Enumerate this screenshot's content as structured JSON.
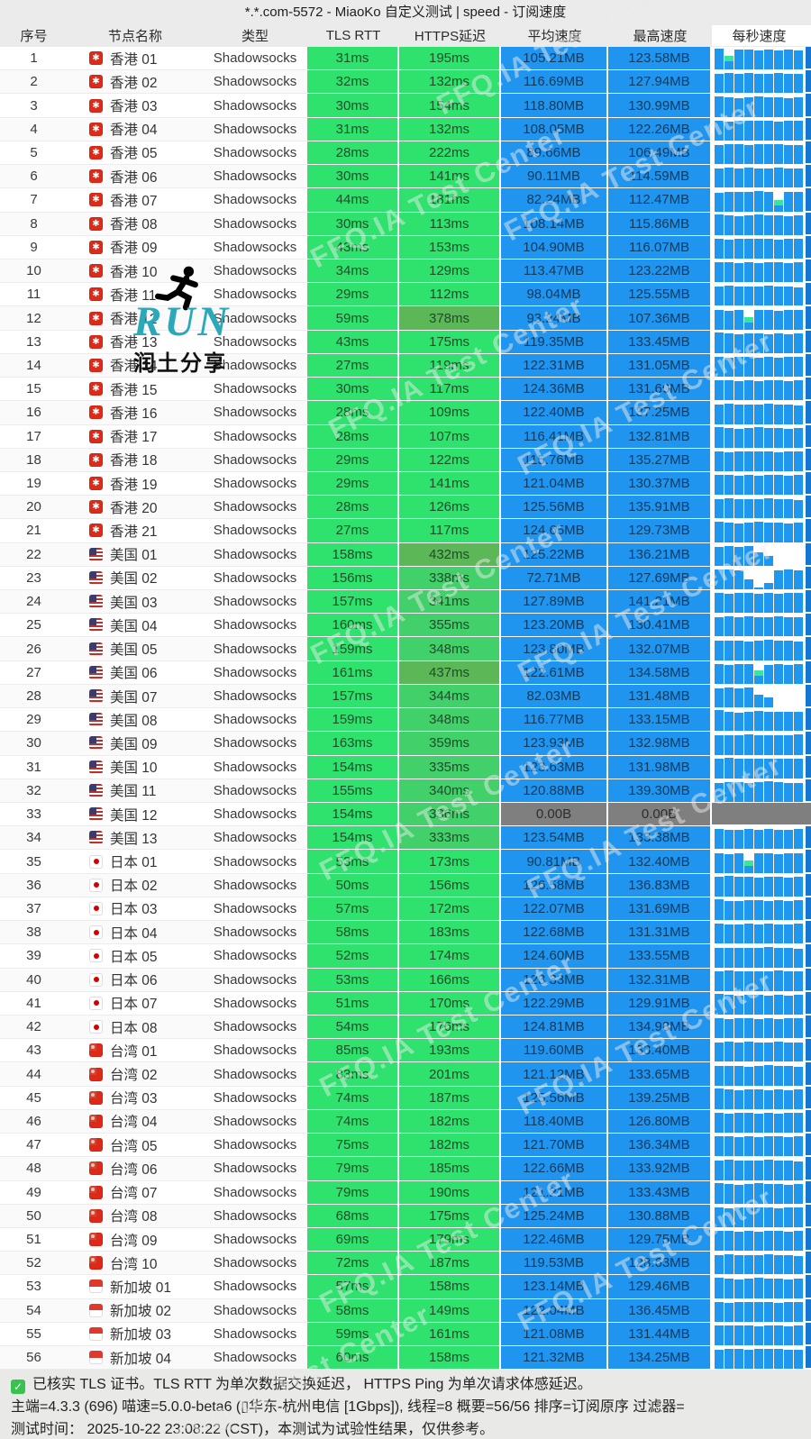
{
  "title": "*.*.com-5572 - MiaoKo 自定义测试 | speed - 订阅速度",
  "columns": [
    "序号",
    "节点名称",
    "类型",
    "TLS RTT",
    "HTTPS延迟",
    "平均速度",
    "最高速度",
    "每秒速度"
  ],
  "colors": {
    "latency_green_bright": "#2ee26d",
    "latency_green_mid": "#41d069",
    "latency_green_dark": "#5cb757",
    "speed_blue": "#2095ef",
    "fail_gray": "#7f7f7f",
    "spark_bar_blue": "#1f97ef",
    "spark_accent_teal": "#35e69b",
    "header_gray": "#ebebeb"
  },
  "watermark": {
    "diagonal_text": "FFQ.IA Test Center",
    "run_text": "RUN",
    "run_caption": "润土分享"
  },
  "footer": {
    "line1": "已核实 TLS 证书。TLS RTT 为单次数据交换延迟， HTTPS Ping 为单次请求体感延迟。",
    "line2": "主端=4.3.3 (696) 喵速=5.0.0-beta6 (▯华东-杭州电信 [1Gbps]), 线程=8 概要=56/56 排序=订阅原序 过滤器=",
    "line3": "测试时间： 2025-10-22 23:08:22 (CST)，本测试为试验性结果，仅供参考。"
  },
  "spark_patterns": [
    [
      0.97,
      {
        "h": 0.62,
        "g": true
      },
      0.93,
      0.9,
      0.88,
      0.9,
      0.87,
      0.9,
      0.88
    ],
    [
      0.9,
      0.93,
      0.89,
      0.91,
      0.88,
      0.9,
      0.92,
      0.88,
      0.9
    ],
    [
      0.95,
      0.89,
      0.86,
      0.9,
      0.92,
      0.88,
      0.9,
      0.87,
      0.9
    ],
    [
      0.9,
      0.88,
      0.92,
      0.9,
      {
        "h": 0.6,
        "g": true
      },
      0.86,
      0.9,
      0.88,
      0.91
    ],
    [
      0.86,
      0.9,
      0.88,
      0.91,
      0.93,
      0.9,
      {
        "h": 0.5,
        "g": true
      },
      0.88,
      0.9
    ],
    [
      0.92,
      0.9,
      0.88,
      0.45,
      0.1,
      0.3,
      0.86,
      0.9,
      0.88
    ],
    [
      0.88,
      0.9,
      0.87,
      0.9,
      0.6,
      0.45,
      0,
      0,
      0
    ],
    [
      0.91,
      0.88,
      0.9,
      0.92,
      0.89,
      0.91,
      0.88,
      0.9,
      0.92
    ],
    [
      0.88,
      0.91,
      0.9,
      0.87,
      0.9,
      0.93,
      0.9,
      0.88,
      0.86
    ],
    [
      0.9,
      0.87,
      0.9,
      {
        "h": 0.55,
        "g": true
      },
      0.88,
      0.9,
      0.87,
      0.91,
      0.9
    ]
  ],
  "rows": [
    {
      "n": 1,
      "f": "hk",
      "name": "香港 01",
      "type": "Shadowsocks",
      "tls": "31ms",
      "hp": "195ms",
      "avg": "105.21MB",
      "max": "123.58MB",
      "sp": 0
    },
    {
      "n": 2,
      "f": "hk",
      "name": "香港 02",
      "type": "Shadowsocks",
      "tls": "32ms",
      "hp": "132ms",
      "avg": "116.69MB",
      "max": "127.94MB",
      "sp": 1
    },
    {
      "n": 3,
      "f": "hk",
      "name": "香港 03",
      "type": "Shadowsocks",
      "tls": "30ms",
      "hp": "154ms",
      "avg": "118.80MB",
      "max": "130.99MB",
      "sp": 2
    },
    {
      "n": 4,
      "f": "hk",
      "name": "香港 04",
      "type": "Shadowsocks",
      "tls": "31ms",
      "hp": "132ms",
      "avg": "108.05MB",
      "max": "122.26MB",
      "sp": 7
    },
    {
      "n": 5,
      "f": "hk",
      "name": "香港 05",
      "type": "Shadowsocks",
      "tls": "28ms",
      "hp": "222ms",
      "avg": "89.66MB",
      "max": "106.49MB",
      "sp": 8
    },
    {
      "n": 6,
      "f": "hk",
      "name": "香港 06",
      "type": "Shadowsocks",
      "tls": "30ms",
      "hp": "141ms",
      "avg": "90.11MB",
      "max": "114.59MB",
      "sp": 1
    },
    {
      "n": 7,
      "f": "hk",
      "name": "香港 07",
      "type": "Shadowsocks",
      "tls": "44ms",
      "hp": "181ms",
      "avg": "82.24MB",
      "max": "112.47MB",
      "sp": 4
    },
    {
      "n": 8,
      "f": "hk",
      "name": "香港 08",
      "type": "Shadowsocks",
      "tls": "30ms",
      "hp": "113ms",
      "avg": "108.14MB",
      "max": "115.86MB",
      "sp": 2
    },
    {
      "n": 9,
      "f": "hk",
      "name": "香港 09",
      "type": "Shadowsocks",
      "tls": "43ms",
      "hp": "153ms",
      "avg": "104.90MB",
      "max": "116.07MB",
      "sp": 7
    },
    {
      "n": 10,
      "f": "hk",
      "name": "香港 10",
      "type": "Shadowsocks",
      "tls": "34ms",
      "hp": "129ms",
      "avg": "113.47MB",
      "max": "123.22MB",
      "sp": 1
    },
    {
      "n": 11,
      "f": "hk",
      "name": "香港 11",
      "type": "Shadowsocks",
      "tls": "29ms",
      "hp": "112ms",
      "avg": "98.04MB",
      "max": "125.55MB",
      "sp": 8
    },
    {
      "n": 12,
      "f": "hk",
      "name": "香港 12",
      "type": "Shadowsocks",
      "tls": "59ms",
      "hp": "378ms",
      "avg": "93.24MB",
      "max": "107.36MB",
      "sp": 9
    },
    {
      "n": 13,
      "f": "hk",
      "name": "香港 13",
      "type": "Shadowsocks",
      "tls": "43ms",
      "hp": "175ms",
      "avg": "119.35MB",
      "max": "133.45MB",
      "sp": 2
    },
    {
      "n": 14,
      "f": "hk",
      "name": "香港 14",
      "type": "Shadowsocks",
      "tls": "27ms",
      "hp": "119ms",
      "avg": "122.31MB",
      "max": "131.05MB",
      "sp": 7
    },
    {
      "n": 15,
      "f": "hk",
      "name": "香港 15",
      "type": "Shadowsocks",
      "tls": "30ms",
      "hp": "117ms",
      "avg": "124.36MB",
      "max": "131.60MB",
      "sp": 1
    },
    {
      "n": 16,
      "f": "hk",
      "name": "香港 16",
      "type": "Shadowsocks",
      "tls": "28ms",
      "hp": "109ms",
      "avg": "122.40MB",
      "max": "137.25MB",
      "sp": 8
    },
    {
      "n": 17,
      "f": "hk",
      "name": "香港 17",
      "type": "Shadowsocks",
      "tls": "28ms",
      "hp": "107ms",
      "avg": "116.41MB",
      "max": "132.81MB",
      "sp": 2
    },
    {
      "n": 18,
      "f": "hk",
      "name": "香港 18",
      "type": "Shadowsocks",
      "tls": "29ms",
      "hp": "122ms",
      "avg": "115.76MB",
      "max": "135.27MB",
      "sp": 7
    },
    {
      "n": 19,
      "f": "hk",
      "name": "香港 19",
      "type": "Shadowsocks",
      "tls": "29ms",
      "hp": "141ms",
      "avg": "121.04MB",
      "max": "130.37MB",
      "sp": 1
    },
    {
      "n": 20,
      "f": "hk",
      "name": "香港 20",
      "type": "Shadowsocks",
      "tls": "28ms",
      "hp": "126ms",
      "avg": "125.56MB",
      "max": "135.91MB",
      "sp": 8
    },
    {
      "n": 21,
      "f": "hk",
      "name": "香港 21",
      "type": "Shadowsocks",
      "tls": "27ms",
      "hp": "117ms",
      "avg": "124.65MB",
      "max": "129.73MB",
      "sp": 2
    },
    {
      "n": 22,
      "f": "us",
      "name": "美国 01",
      "type": "Shadowsocks",
      "tls": "158ms",
      "hp": "432ms",
      "avg": "125.22MB",
      "max": "136.21MB",
      "sp": 6
    },
    {
      "n": 23,
      "f": "us",
      "name": "美国 02",
      "type": "Shadowsocks",
      "tls": "156ms",
      "hp": "338ms",
      "avg": "72.71MB",
      "max": "127.69MB",
      "sp": 5
    },
    {
      "n": 24,
      "f": "us",
      "name": "美国 03",
      "type": "Shadowsocks",
      "tls": "157ms",
      "hp": "341ms",
      "avg": "127.89MB",
      "max": "141.21MB",
      "sp": 7
    },
    {
      "n": 25,
      "f": "us",
      "name": "美国 04",
      "type": "Shadowsocks",
      "tls": "160ms",
      "hp": "355ms",
      "avg": "123.20MB",
      "max": "130.41MB",
      "sp": 1
    },
    {
      "n": 26,
      "f": "us",
      "name": "美国 05",
      "type": "Shadowsocks",
      "tls": "159ms",
      "hp": "348ms",
      "avg": "123.80MB",
      "max": "132.07MB",
      "sp": 8
    },
    {
      "n": 27,
      "f": "us",
      "name": "美国 06",
      "type": "Shadowsocks",
      "tls": "161ms",
      "hp": "437ms",
      "avg": "122.61MB",
      "max": "134.58MB",
      "sp": 3
    },
    {
      "n": 28,
      "f": "us",
      "name": "美国 07",
      "type": "Shadowsocks",
      "tls": "157ms",
      "hp": "344ms",
      "avg": "82.03MB",
      "max": "131.48MB",
      "sp": 6
    },
    {
      "n": 29,
      "f": "us",
      "name": "美国 08",
      "type": "Shadowsocks",
      "tls": "159ms",
      "hp": "348ms",
      "avg": "116.77MB",
      "max": "133.15MB",
      "sp": 2
    },
    {
      "n": 30,
      "f": "us",
      "name": "美国 09",
      "type": "Shadowsocks",
      "tls": "163ms",
      "hp": "359ms",
      "avg": "123.93MB",
      "max": "132.98MB",
      "sp": 7
    },
    {
      "n": 31,
      "f": "us",
      "name": "美国 10",
      "type": "Shadowsocks",
      "tls": "154ms",
      "hp": "335ms",
      "avg": "123.63MB",
      "max": "131.98MB",
      "sp": 1
    },
    {
      "n": 32,
      "f": "us",
      "name": "美国 11",
      "type": "Shadowsocks",
      "tls": "155ms",
      "hp": "340ms",
      "avg": "120.88MB",
      "max": "139.30MB",
      "sp": 8
    },
    {
      "n": 33,
      "f": "us",
      "name": "美国 12",
      "type": "Shadowsocks",
      "tls": "154ms",
      "hp": "336ms",
      "avg": "0.00B",
      "max": "0.00B",
      "sp": 1
    },
    {
      "n": 34,
      "f": "us",
      "name": "美国 13",
      "type": "Shadowsocks",
      "tls": "154ms",
      "hp": "333ms",
      "avg": "123.54MB",
      "max": "133.38MB",
      "sp": 7
    },
    {
      "n": 35,
      "f": "jp",
      "name": "日本 01",
      "type": "Shadowsocks",
      "tls": "53ms",
      "hp": "173ms",
      "avg": "90.81MB",
      "max": "132.40MB",
      "sp": 9
    },
    {
      "n": 36,
      "f": "jp",
      "name": "日本 02",
      "type": "Shadowsocks",
      "tls": "50ms",
      "hp": "156ms",
      "avg": "126.58MB",
      "max": "136.83MB",
      "sp": 1
    },
    {
      "n": 37,
      "f": "jp",
      "name": "日本 03",
      "type": "Shadowsocks",
      "tls": "57ms",
      "hp": "172ms",
      "avg": "122.07MB",
      "max": "131.69MB",
      "sp": 2
    },
    {
      "n": 38,
      "f": "jp",
      "name": "日本 04",
      "type": "Shadowsocks",
      "tls": "58ms",
      "hp": "183ms",
      "avg": "122.68MB",
      "max": "131.31MB",
      "sp": 7
    },
    {
      "n": 39,
      "f": "jp",
      "name": "日本 05",
      "type": "Shadowsocks",
      "tls": "52ms",
      "hp": "174ms",
      "avg": "124.60MB",
      "max": "133.55MB",
      "sp": 8
    },
    {
      "n": 40,
      "f": "jp",
      "name": "日本 06",
      "type": "Shadowsocks",
      "tls": "53ms",
      "hp": "166ms",
      "avg": "123.33MB",
      "max": "132.31MB",
      "sp": 1
    },
    {
      "n": 41,
      "f": "jp",
      "name": "日本 07",
      "type": "Shadowsocks",
      "tls": "51ms",
      "hp": "170ms",
      "avg": "122.29MB",
      "max": "129.91MB",
      "sp": 2
    },
    {
      "n": 42,
      "f": "jp",
      "name": "日本 08",
      "type": "Shadowsocks",
      "tls": "54ms",
      "hp": "176ms",
      "avg": "124.81MB",
      "max": "134.98MB",
      "sp": 7
    },
    {
      "n": 43,
      "f": "tw",
      "name": "台湾 01",
      "type": "Shadowsocks",
      "tls": "85ms",
      "hp": "193ms",
      "avg": "119.60MB",
      "max": "133.40MB",
      "sp": 1
    },
    {
      "n": 44,
      "f": "tw",
      "name": "台湾 02",
      "type": "Shadowsocks",
      "tls": "83ms",
      "hp": "201ms",
      "avg": "121.12MB",
      "max": "133.65MB",
      "sp": 8
    },
    {
      "n": 45,
      "f": "tw",
      "name": "台湾 03",
      "type": "Shadowsocks",
      "tls": "74ms",
      "hp": "187ms",
      "avg": "125.56MB",
      "max": "139.25MB",
      "sp": 2
    },
    {
      "n": 46,
      "f": "tw",
      "name": "台湾 04",
      "type": "Shadowsocks",
      "tls": "74ms",
      "hp": "182ms",
      "avg": "118.40MB",
      "max": "126.80MB",
      "sp": 7
    },
    {
      "n": 47,
      "f": "tw",
      "name": "台湾 05",
      "type": "Shadowsocks",
      "tls": "75ms",
      "hp": "182ms",
      "avg": "121.70MB",
      "max": "136.34MB",
      "sp": 1
    },
    {
      "n": 48,
      "f": "tw",
      "name": "台湾 06",
      "type": "Shadowsocks",
      "tls": "79ms",
      "hp": "185ms",
      "avg": "122.66MB",
      "max": "133.92MB",
      "sp": 8
    },
    {
      "n": 49,
      "f": "tw",
      "name": "台湾 07",
      "type": "Shadowsocks",
      "tls": "79ms",
      "hp": "190ms",
      "avg": "121.21MB",
      "max": "133.43MB",
      "sp": 2
    },
    {
      "n": 50,
      "f": "tw",
      "name": "台湾 08",
      "type": "Shadowsocks",
      "tls": "68ms",
      "hp": "175ms",
      "avg": "125.24MB",
      "max": "130.88MB",
      "sp": 7
    },
    {
      "n": 51,
      "f": "tw",
      "name": "台湾 09",
      "type": "Shadowsocks",
      "tls": "69ms",
      "hp": "179ms",
      "avg": "122.46MB",
      "max": "129.75MB",
      "sp": 1
    },
    {
      "n": 52,
      "f": "tw",
      "name": "台湾 10",
      "type": "Shadowsocks",
      "tls": "72ms",
      "hp": "187ms",
      "avg": "119.53MB",
      "max": "128.63MB",
      "sp": 8
    },
    {
      "n": 53,
      "f": "sg",
      "name": "新加坡 01",
      "type": "Shadowsocks",
      "tls": "57ms",
      "hp": "158ms",
      "avg": "123.14MB",
      "max": "129.46MB",
      "sp": 2
    },
    {
      "n": 54,
      "f": "sg",
      "name": "新加坡 02",
      "type": "Shadowsocks",
      "tls": "58ms",
      "hp": "149ms",
      "avg": "122.04MB",
      "max": "136.45MB",
      "sp": 7
    },
    {
      "n": 55,
      "f": "sg",
      "name": "新加坡 03",
      "type": "Shadowsocks",
      "tls": "59ms",
      "hp": "161ms",
      "avg": "121.08MB",
      "max": "131.44MB",
      "sp": 1
    },
    {
      "n": 56,
      "f": "sg",
      "name": "新加坡 04",
      "type": "Shadowsocks",
      "tls": "60ms",
      "hp": "158ms",
      "avg": "121.32MB",
      "max": "134.25MB",
      "sp": 8
    }
  ]
}
